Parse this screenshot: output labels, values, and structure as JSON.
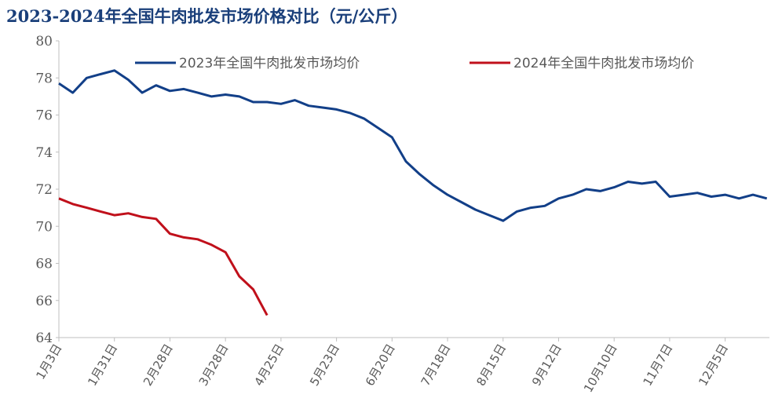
{
  "chart_data": {
    "type": "line",
    "title": "2023-2024年全国牛肉批发市场价格对比（元/公斤）",
    "categories": [
      "1月3日",
      null,
      null,
      null,
      "1月31日",
      null,
      null,
      null,
      "2月28日",
      null,
      null,
      null,
      "3月28日",
      null,
      null,
      null,
      "4月25日",
      null,
      null,
      null,
      "5月23日",
      null,
      null,
      null,
      "6月20日",
      null,
      null,
      null,
      "7月18日",
      null,
      null,
      null,
      "8月15日",
      null,
      null,
      null,
      "9月12日",
      null,
      null,
      null,
      "10月10日",
      null,
      null,
      null,
      "11月7日",
      null,
      null,
      null,
      "12月5日",
      null,
      null,
      null
    ],
    "series": [
      {
        "name": "2023年全国牛肉批发市场均价",
        "color": "#123f88",
        "values": [
          77.7,
          77.2,
          78.0,
          78.2,
          78.4,
          77.9,
          77.2,
          77.6,
          77.3,
          77.4,
          77.2,
          77.0,
          77.1,
          77.0,
          76.7,
          76.7,
          76.6,
          76.8,
          76.5,
          76.4,
          76.3,
          76.1,
          75.8,
          75.3,
          74.8,
          73.5,
          72.8,
          72.2,
          71.7,
          71.3,
          70.9,
          70.6,
          70.3,
          70.8,
          71.0,
          71.1,
          71.5,
          71.7,
          72.0,
          71.9,
          72.1,
          72.4,
          72.3,
          72.4,
          71.6,
          71.7,
          71.8,
          71.6,
          71.7,
          71.5,
          71.7,
          71.5
        ]
      },
      {
        "name": "2024年全国牛肉批发市场均价",
        "color": "#c0101b",
        "values": [
          71.5,
          71.2,
          71.0,
          70.8,
          70.6,
          70.7,
          70.5,
          70.4,
          69.6,
          69.4,
          69.3,
          69.0,
          68.6,
          67.3,
          66.6,
          65.2,
          null,
          null,
          null,
          null,
          null,
          null,
          null,
          null,
          null,
          null,
          null,
          null,
          null,
          null,
          null,
          null,
          null,
          null,
          null,
          null,
          null,
          null,
          null,
          null,
          null,
          null,
          null,
          null,
          null,
          null,
          null,
          null,
          null,
          null,
          null,
          null
        ]
      }
    ],
    "ylim": [
      64,
      80
    ],
    "yticks": [
      64,
      66,
      68,
      70,
      72,
      74,
      76,
      78,
      80
    ]
  }
}
